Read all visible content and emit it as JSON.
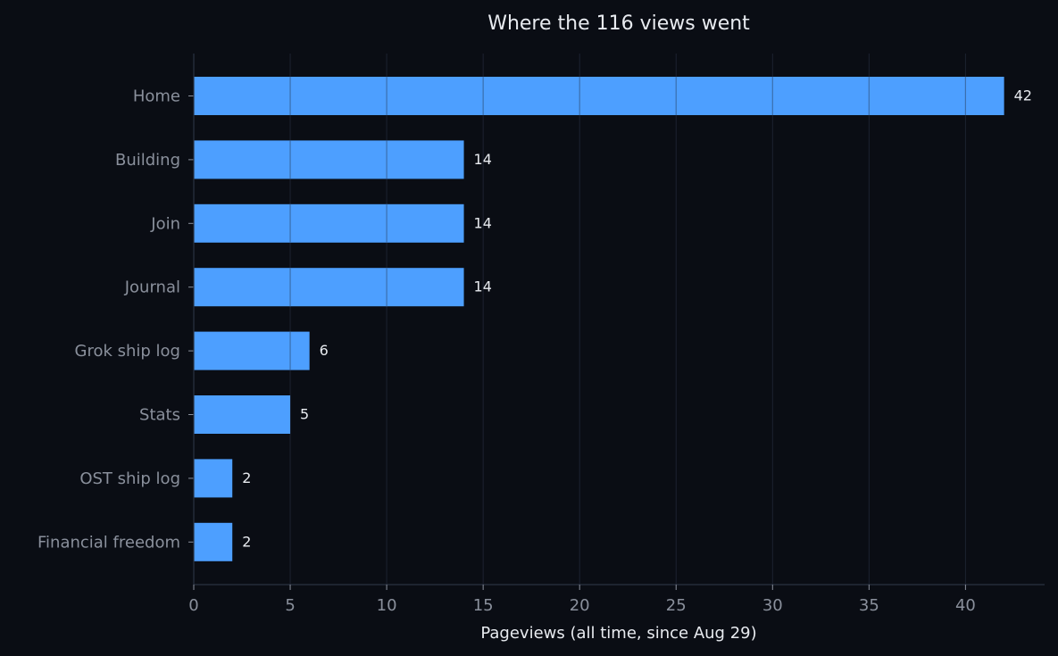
{
  "chart_data": {
    "type": "bar",
    "orientation": "horizontal",
    "title": "Where the 116 views went",
    "xlabel": "Pageviews (all time, since Aug 29)",
    "ylabel": "",
    "categories": [
      "Home",
      "Building",
      "Join",
      "Journal",
      "Grok ship log",
      "Stats",
      "OST ship log",
      "Financial freedom"
    ],
    "values": [
      42,
      14,
      14,
      14,
      6,
      5,
      2,
      2
    ],
    "xlim": [
      0,
      44.1
    ],
    "xticks": [
      0,
      5,
      10,
      15,
      20,
      25,
      30,
      35,
      40
    ],
    "grid": true,
    "data_labels": true,
    "bar_color": "#4d9fff",
    "background_color": "#0a0d14",
    "grid_color": "#1c2230"
  }
}
